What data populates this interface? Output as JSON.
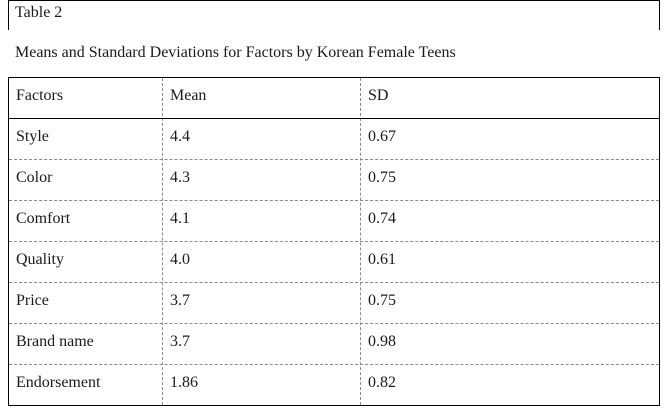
{
  "table_number": "Table 2",
  "table_title": "Means and Standard Deviations for Factors by Korean Female Teens",
  "headers": [
    "Factors",
    "Mean",
    "SD"
  ],
  "rows": [
    [
      "Style",
      "4.4",
      "0.67"
    ],
    [
      "Color",
      "4.3",
      "0.75"
    ],
    [
      "Comfort",
      "4.1",
      "0.74"
    ],
    [
      "Quality",
      "4.0",
      "0.61"
    ],
    [
      "Price",
      "3.7",
      "0.75"
    ],
    [
      "Brand name",
      "3.7",
      "0.98"
    ],
    [
      "Endorsement",
      "1.86",
      "0.82"
    ]
  ]
}
